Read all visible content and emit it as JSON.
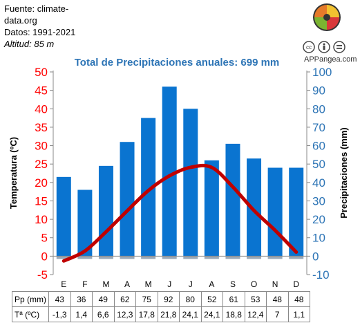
{
  "source": {
    "line1": "Fuente: climate-",
    "line2": "data.org",
    "datos": "Datos: 1991-2021",
    "altitud": "Altitud: 85 m"
  },
  "brand": {
    "name": "APPangea.com"
  },
  "chart_data": {
    "type": "bar+line",
    "title": "Total de Precipitaciones anuales: 699 mm",
    "categories": [
      "E",
      "F",
      "M",
      "A",
      "M",
      "J",
      "J",
      "A",
      "S",
      "O",
      "N",
      "D"
    ],
    "precipitation": {
      "values": [
        43,
        36,
        49,
        62,
        75,
        92,
        80,
        52,
        61,
        53,
        48,
        48
      ],
      "color": "#0a74d0"
    },
    "temperature": {
      "values": [
        -1.3,
        1.4,
        6.6,
        12.3,
        17.8,
        21.8,
        24.1,
        24.1,
        18.8,
        12.4,
        7,
        1.1
      ],
      "color": "#c00000"
    },
    "y_left": {
      "label": "Temperatura (ºC)",
      "range": [
        -5,
        50
      ],
      "ticks": [
        -5,
        0,
        5,
        10,
        15,
        20,
        25,
        30,
        35,
        40,
        45,
        50
      ],
      "color": "#ff0000"
    },
    "y_right": {
      "label": "Precipitaciones (mm)",
      "range": [
        -10,
        100
      ],
      "ticks": [
        -10,
        0,
        10,
        20,
        30,
        40,
        50,
        60,
        70,
        80,
        90,
        100
      ],
      "color": "#2e75b6"
    },
    "grid": false
  },
  "table": {
    "row_labels": [
      "Pp (mm)",
      "Tª (ºC)"
    ],
    "pp": [
      "43",
      "36",
      "49",
      "62",
      "75",
      "92",
      "80",
      "52",
      "61",
      "53",
      "48",
      "48"
    ],
    "t": [
      "-1,3",
      "1,4",
      "6,6",
      "12,3",
      "17,8",
      "21,8",
      "24,1",
      "24,1",
      "18,8",
      "12,4",
      "7",
      "1,1"
    ]
  }
}
